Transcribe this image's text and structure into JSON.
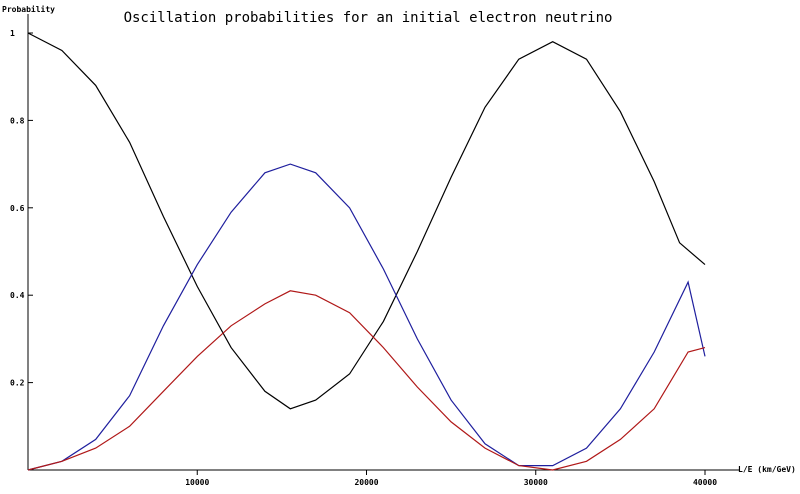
{
  "chart_data": {
    "type": "line",
    "title": "Oscillation probabilities for an initial electron neutrino",
    "xlabel": "L/E (km/GeV)",
    "ylabel": "Probability",
    "xlim": [
      0,
      40000
    ],
    "ylim": [
      0,
      1
    ],
    "x_ticks": [
      10000,
      20000,
      30000,
      40000
    ],
    "x_tick_labels": [
      "10000",
      "20000",
      "30000",
      "40000"
    ],
    "y_ticks": [
      0.2,
      0.4,
      0.6,
      0.8,
      1
    ],
    "y_tick_labels": [
      "0.2",
      "0.4",
      "0.6",
      "0.8",
      "1"
    ],
    "grid": false,
    "legend": false,
    "series": [
      {
        "color": "#000000",
        "x": [
          0,
          2000,
          4000,
          6000,
          8000,
          10000,
          12000,
          14000,
          15500,
          17000,
          19000,
          21000,
          23000,
          25000,
          27000,
          29000,
          31000,
          33000,
          35000,
          37000,
          38500,
          40000
        ],
        "values": [
          1.0,
          0.96,
          0.88,
          0.75,
          0.58,
          0.42,
          0.28,
          0.18,
          0.14,
          0.16,
          0.22,
          0.34,
          0.5,
          0.67,
          0.83,
          0.94,
          0.98,
          0.94,
          0.82,
          0.66,
          0.52,
          0.47
        ]
      },
      {
        "color": "#1f1f9e",
        "x": [
          0,
          2000,
          4000,
          6000,
          8000,
          10000,
          12000,
          14000,
          15500,
          17000,
          19000,
          21000,
          23000,
          25000,
          27000,
          29000,
          31000,
          33000,
          35000,
          37000,
          39000,
          40000
        ],
        "values": [
          0.0,
          0.02,
          0.07,
          0.17,
          0.33,
          0.47,
          0.59,
          0.68,
          0.7,
          0.68,
          0.6,
          0.46,
          0.3,
          0.16,
          0.06,
          0.01,
          0.01,
          0.05,
          0.14,
          0.27,
          0.43,
          0.26
        ]
      },
      {
        "color": "#b01818",
        "x": [
          0,
          2000,
          4000,
          6000,
          8000,
          10000,
          12000,
          14000,
          15500,
          17000,
          19000,
          21000,
          23000,
          25000,
          27000,
          29000,
          31000,
          33000,
          35000,
          37000,
          39000,
          40000
        ],
        "values": [
          0.0,
          0.02,
          0.05,
          0.1,
          0.18,
          0.26,
          0.33,
          0.38,
          0.41,
          0.4,
          0.36,
          0.28,
          0.19,
          0.11,
          0.05,
          0.01,
          0.0,
          0.02,
          0.07,
          0.14,
          0.27,
          0.28
        ]
      }
    ]
  }
}
